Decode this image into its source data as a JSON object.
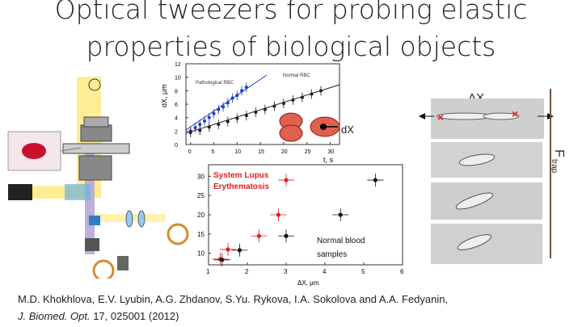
{
  "slide": {
    "title_line1": "Optical tweezers for probing elastic",
    "title_line2": "properties of biological objects"
  },
  "citation": {
    "authors": "M.D. Khokhlova, E.V. Lyubin, A.G. Zhdanov, S.Yu. Rykova, I.A. Sokolova and A.A. Fedyanin,",
    "journal": "J. Biomed. Opt.",
    "details": " 17, 025001 (2012)"
  },
  "cell_panel": {
    "dx_label": "ΔX",
    "force_label": "F",
    "force_subscript": "trap"
  },
  "inset_label": "dX",
  "chart_data": [
    {
      "type": "scatter",
      "xlabel": "t, s",
      "ylabel": "dX, μm",
      "xlim": [
        -1,
        32
      ],
      "ylim": [
        0,
        12
      ],
      "x_ticks": [
        0,
        5,
        10,
        15,
        20,
        25,
        30
      ],
      "y_ticks": [
        0,
        2,
        4,
        6,
        8,
        10,
        12
      ],
      "series": [
        {
          "name": "Pathological RBC",
          "color": "#1f3fbf",
          "points": [
            [
              0,
              2.0
            ],
            [
              1,
              2.5
            ],
            [
              2,
              3.0
            ],
            [
              3,
              3.5
            ],
            [
              4,
              4.0
            ],
            [
              5,
              4.6
            ],
            [
              6,
              5.2
            ],
            [
              7,
              5.6
            ],
            [
              8,
              6.2
            ],
            [
              9,
              6.9
            ],
            [
              10,
              7.3
            ],
            [
              11,
              8.0
            ],
            [
              12,
              8.5
            ]
          ]
        },
        {
          "name": "Normal RBC",
          "color": "#222222",
          "points": [
            [
              0,
              1.8
            ],
            [
              2,
              2.1
            ],
            [
              4,
              2.6
            ],
            [
              6,
              3.0
            ],
            [
              8,
              3.4
            ],
            [
              10,
              3.9
            ],
            [
              12,
              4.3
            ],
            [
              14,
              4.8
            ],
            [
              16,
              5.2
            ],
            [
              18,
              5.7
            ],
            [
              20,
              6.1
            ],
            [
              22,
              6.6
            ],
            [
              24,
              7.0
            ],
            [
              26,
              7.5
            ],
            [
              28,
              8.0
            ]
          ]
        }
      ]
    },
    {
      "type": "scatter",
      "xlabel": "ΔX, μm",
      "ylabel": "",
      "xlim": [
        1,
        6
      ],
      "ylim": [
        7,
        33
      ],
      "x_ticks": [
        1,
        2,
        3,
        4,
        5,
        6
      ],
      "y_ticks": [
        10,
        15,
        20,
        25,
        30
      ],
      "series": [
        {
          "name": "System Lupus Erythematosis",
          "color": "#e02020",
          "points": [
            [
              1.3,
              8.5
            ],
            [
              1.5,
              11
            ],
            [
              2.3,
              14.5
            ],
            [
              2.8,
              20
            ],
            [
              3.0,
              29
            ]
          ]
        },
        {
          "name": "Normal blood samples",
          "color": "#111111",
          "points": [
            [
              1.35,
              8.3
            ],
            [
              1.8,
              10.8
            ],
            [
              3.0,
              14.5
            ],
            [
              4.4,
              20
            ],
            [
              5.3,
              29
            ]
          ]
        }
      ]
    }
  ]
}
